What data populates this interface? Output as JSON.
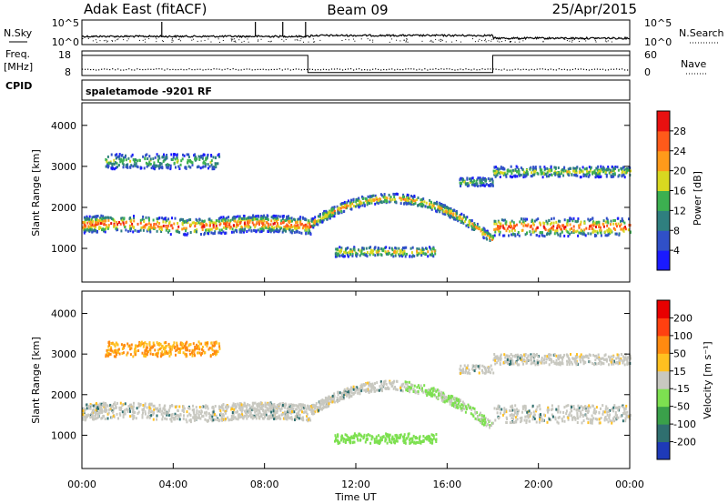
{
  "chart_data": {
    "type": "heatmap",
    "header": {
      "site": "Adak East (fitACF)",
      "beam": "Beam 09",
      "date": "25/Apr/2015"
    },
    "time_axis": {
      "label": "Time UT",
      "ticks": [
        "00:00",
        "04:00",
        "08:00",
        "12:00",
        "16:00",
        "20:00",
        "00:00"
      ],
      "range_hours": [
        0,
        24
      ]
    },
    "noise_panel": {
      "left_label": "N.Sky",
      "right_label": "N.Search",
      "left_ticks": [
        "10^5",
        "10^0"
      ],
      "right_ticks": [
        "10^5",
        "10^0"
      ]
    },
    "freq_panel": {
      "left_label_line1": "Freq.",
      "left_label_line2": "[MHz]",
      "left_ticks": [
        "18",
        "8"
      ],
      "right_label": "Nave",
      "right_ticks": [
        "60",
        "0"
      ],
      "frequency_steps": [
        {
          "t0": 0.0,
          "t1": 9.9,
          "level": 0.82
        },
        {
          "t0": 9.9,
          "t1": 18.0,
          "level": 0.12
        },
        {
          "t0": 18.0,
          "t1": 24.0,
          "level": 0.82
        }
      ],
      "cpid_label": "CPID"
    },
    "cpid_text": "spaletamode -9201 RF",
    "range_axis": {
      "label": "Slant Range [km]",
      "ticks": [
        1000,
        2000,
        3000,
        4000
      ],
      "range_km": [
        180,
        4550
      ]
    },
    "power_panel": {
      "colorbar_label": "Power [dB]",
      "colorbar_ticks": [
        "4",
        "8",
        "12",
        "16",
        "20",
        "24",
        "28"
      ],
      "colors": [
        "#1a1aff",
        "#3050c8",
        "#2f7f7f",
        "#3cb050",
        "#d8d820",
        "#ff9a1a",
        "#ff5a1a",
        "#e81010"
      ]
    },
    "velocity_panel": {
      "colorbar_label": "Velocity [m s⁻¹]",
      "colorbar_ticks": [
        "200",
        "100",
        "50",
        "15",
        "-15",
        "-50",
        "-100",
        "-200"
      ],
      "colors": [
        "#1e3ab8",
        "#2f6f6f",
        "#3aa04a",
        "#7de050",
        "#c8c8c0",
        "#ffc020",
        "#ff8a10",
        "#ff4010",
        "#e80000"
      ]
    }
  }
}
